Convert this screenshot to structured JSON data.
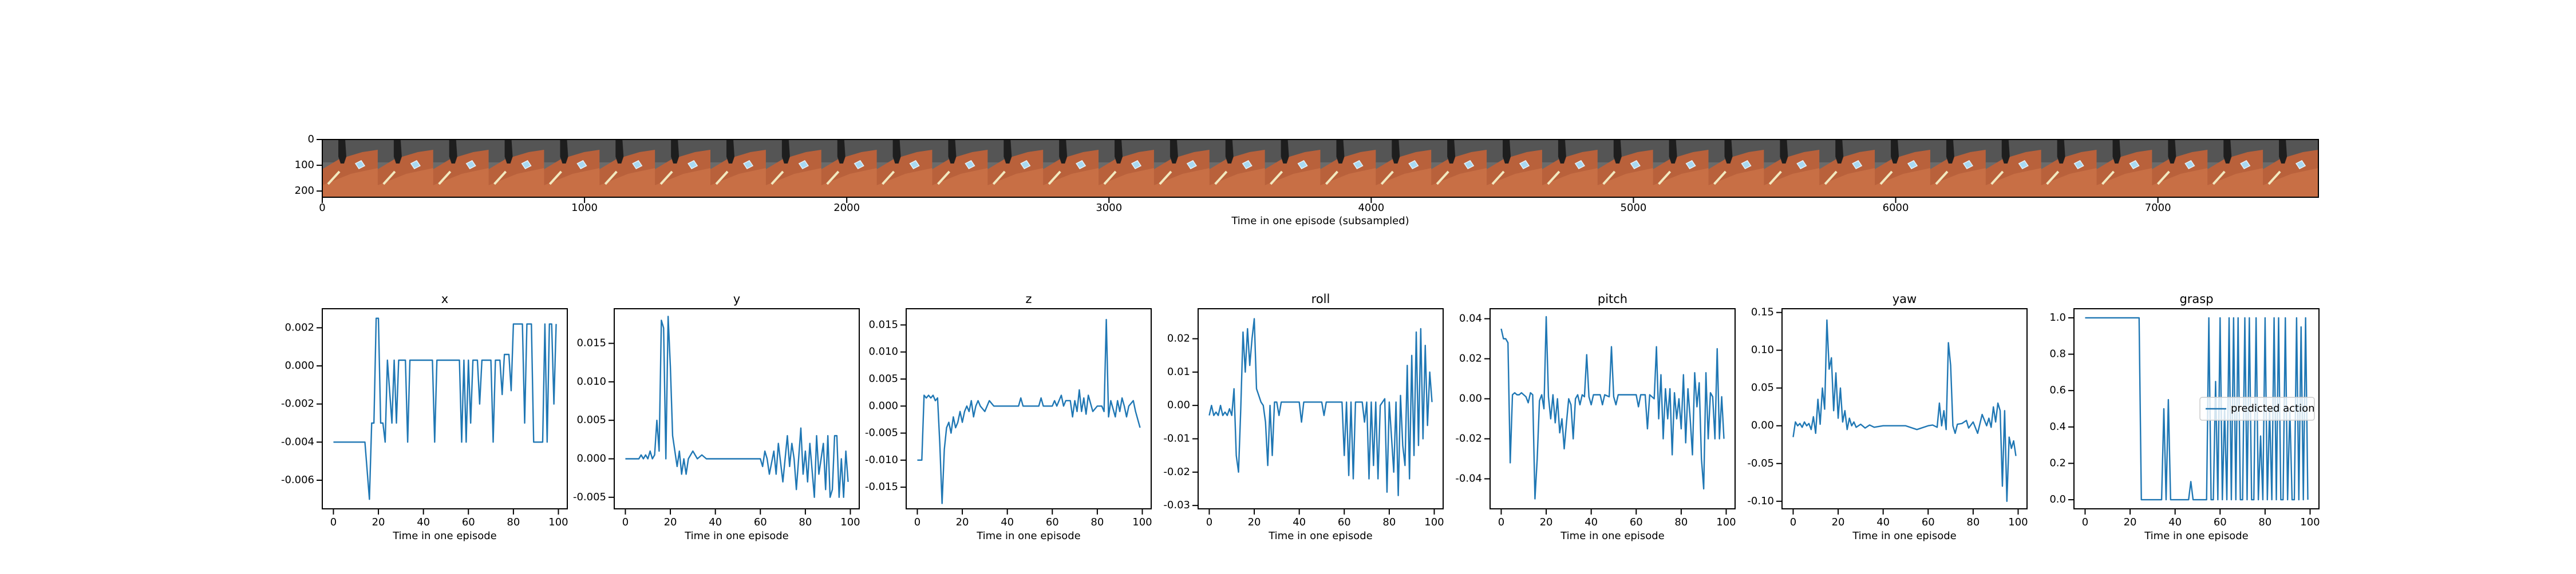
{
  "chart_data": [
    {
      "type": "image",
      "xlabel": "Time in one episode (subsampled)",
      "xlim": [
        0,
        7612
      ],
      "ylim": [
        224,
        0
      ],
      "xticks": [
        0,
        1000,
        2000,
        3000,
        4000,
        5000,
        6000,
        7000
      ],
      "yticks": [
        0,
        100,
        200
      ]
    },
    {
      "type": "line",
      "title": "x",
      "xlabel": "Time in one episode",
      "xlim": [
        -4.95,
        103.95
      ],
      "ylim": [
        -0.0075,
        0.003
      ],
      "xticks": [
        0,
        20,
        40,
        60,
        80,
        100
      ],
      "yticks": [
        -0.006,
        -0.004,
        -0.002,
        {
          "value": 0,
          "label": "0.000"
        },
        0.002
      ],
      "x": [
        0,
        14,
        16,
        17,
        18,
        19,
        20,
        21,
        22,
        23,
        24,
        26,
        27,
        28,
        29,
        32,
        33,
        34,
        44,
        45,
        46,
        56,
        57,
        58,
        59,
        60,
        61,
        62,
        64,
        65,
        66,
        70,
        71,
        72,
        74,
        75,
        76,
        78,
        79,
        80,
        84,
        85,
        86,
        88,
        89,
        93,
        94,
        95,
        96,
        97,
        98,
        99
      ],
      "series": [
        {
          "color": "#1f77b4",
          "values": [
            -0.004,
            -0.004,
            -0.007,
            -0.003,
            -0.003,
            0.0025,
            0.0025,
            -0.003,
            -0.003,
            -0.004,
            0.0003,
            -0.003,
            0.0003,
            -0.003,
            0.0003,
            0.0003,
            -0.004,
            0.0003,
            0.0003,
            -0.004,
            0.0003,
            0.0003,
            -0.004,
            0.0003,
            -0.004,
            0.0003,
            -0.003,
            0.0003,
            0.0003,
            -0.002,
            0.0003,
            0.0003,
            -0.004,
            0.0003,
            0.0003,
            -0.0015,
            0.0006,
            0.0006,
            -0.0013,
            0.0022,
            0.0022,
            -0.003,
            0.0022,
            0.0022,
            -0.004,
            -0.004,
            0.0022,
            -0.004,
            0.0022,
            0.0022,
            -0.002,
            0.0022
          ]
        }
      ]
    },
    {
      "type": "line",
      "title": "y",
      "xlabel": "Time in one episode",
      "xlim": [
        -4.95,
        103.95
      ],
      "ylim": [
        -0.0065,
        0.0195
      ],
      "xticks": [
        0,
        20,
        40,
        60,
        80,
        100
      ],
      "yticks": [
        -0.005,
        {
          "value": 0,
          "label": "0.000"
        },
        0.005,
        {
          "value": 0.01,
          "label": "0.010"
        },
        0.015
      ],
      "x": [
        0,
        6,
        7,
        8,
        9,
        10,
        11,
        12,
        13,
        14,
        15,
        16,
        17,
        18,
        19,
        20,
        21,
        22,
        23,
        24,
        25,
        26,
        27,
        28,
        30,
        32,
        34,
        36,
        60,
        61,
        62,
        63,
        64,
        66,
        67,
        68,
        70,
        72,
        73,
        74,
        75,
        76,
        78,
        79,
        80,
        81,
        82,
        84,
        85,
        86,
        88,
        89,
        90,
        91,
        92,
        93,
        94,
        95,
        96,
        97,
        98,
        99
      ],
      "series": [
        {
          "color": "#1f77b4",
          "values": [
            0,
            0,
            0.0005,
            0,
            0.0005,
            0,
            0.001,
            0,
            0.0005,
            0.005,
            0.001,
            0.018,
            0.017,
            0,
            0.0185,
            0.012,
            0.003,
            0.001,
            -0.001,
            0.001,
            -0.002,
            0,
            -0.002,
            0,
            0.001,
            0,
            0.0005,
            0,
            0,
            -0.001,
            0.001,
            0,
            -0.002,
            0.001,
            -0.002,
            0.002,
            -0.003,
            0.003,
            -0.001,
            0.002,
            0,
            -0.004,
            0.004,
            -0.002,
            0.001,
            -0.003,
            0.002,
            -0.005,
            0.003,
            -0.002,
            0.002,
            -0.004,
            0.003,
            -0.005,
            -0.004,
            0.003,
            0.003,
            -0.005,
            0,
            -0.005,
            0.001,
            -0.003
          ]
        }
      ]
    },
    {
      "type": "line",
      "title": "z",
      "xlabel": "Time in one episode",
      "xlim": [
        -4.95,
        103.95
      ],
      "ylim": [
        -0.019,
        0.018
      ],
      "xticks": [
        0,
        20,
        40,
        60,
        80,
        100
      ],
      "yticks": [
        -0.015,
        {
          "value": -0.01,
          "label": "-0.010"
        },
        -0.005,
        {
          "value": 0,
          "label": "0.000"
        },
        0.005,
        {
          "value": 0.01,
          "label": "0.010"
        },
        0.015
      ],
      "x": [
        0,
        2,
        3,
        4,
        5,
        6,
        7,
        8,
        9,
        10,
        11,
        12,
        13,
        14,
        15,
        16,
        17,
        18,
        19,
        20,
        21,
        22,
        23,
        24,
        25,
        26,
        27,
        28,
        30,
        32,
        34,
        45,
        46,
        47,
        54,
        55,
        56,
        60,
        61,
        62,
        64,
        65,
        66,
        68,
        69,
        70,
        71,
        72,
        73,
        74,
        75,
        76,
        78,
        80,
        82,
        83,
        84,
        85,
        86,
        88,
        89,
        90,
        91,
        92,
        93,
        94,
        96,
        97,
        99
      ],
      "series": [
        {
          "color": "#1f77b4",
          "values": [
            -0.01,
            -0.01,
            0.002,
            0.0015,
            0.002,
            0.0015,
            0.002,
            0.001,
            0.0015,
            -0.007,
            -0.018,
            -0.008,
            -0.004,
            -0.003,
            -0.005,
            -0.002,
            -0.004,
            -0.003,
            -0.001,
            -0.003,
            -0.001,
            0,
            -0.001,
            0.001,
            -0.002,
            0,
            0.001,
            0,
            -0.001,
            0.001,
            0,
            0,
            0.0015,
            0,
            0,
            0.0015,
            0,
            0,
            0.001,
            0,
            0.002,
            0,
            0.001,
            0.001,
            -0.002,
            0.001,
            -0.001,
            0.003,
            -0.001,
            0.0015,
            -0.0015,
            0.002,
            -0.001,
            0,
            0,
            -0.001,
            0.016,
            -0.002,
            0.001,
            -0.002,
            0.001,
            -0.001,
            0.0015,
            0,
            -0.002,
            0,
            0.001,
            -0.001,
            -0.004
          ]
        }
      ]
    },
    {
      "type": "line",
      "title": "roll",
      "xlabel": "Time in one episode",
      "xlim": [
        -4.95,
        103.95
      ],
      "ylim": [
        -0.031,
        0.029
      ],
      "xticks": [
        0,
        20,
        40,
        60,
        80,
        100
      ],
      "yticks": [
        -0.03,
        -0.02,
        -0.01,
        {
          "value": 0,
          "label": "0.00"
        },
        0.01,
        0.02
      ],
      "x": [
        0,
        1,
        2,
        3,
        4,
        5,
        6,
        7,
        8,
        9,
        10,
        11,
        12,
        13,
        14,
        15,
        16,
        17,
        18,
        19,
        20,
        21,
        22,
        23,
        24,
        25,
        26,
        27,
        28,
        29,
        30,
        31,
        32,
        40,
        41,
        42,
        50,
        51,
        52,
        58,
        59,
        60,
        61,
        62,
        63,
        64,
        65,
        68,
        69,
        70,
        71,
        72,
        73,
        74,
        75,
        76,
        78,
        79,
        80,
        82,
        83,
        84,
        85,
        86,
        87,
        88,
        89,
        90,
        91,
        92,
        93,
        94,
        95,
        96,
        97,
        98,
        99
      ],
      "series": [
        {
          "color": "#1f77b4",
          "values": [
            -0.003,
            0,
            -0.003,
            -0.002,
            -0.003,
            0,
            -0.003,
            -0.002,
            -0.003,
            -0.001,
            -0.003,
            0.005,
            -0.015,
            -0.02,
            -0.001,
            0.022,
            0.01,
            0.023,
            0.012,
            0.02,
            0.026,
            0.005,
            0.003,
            0.001,
            0,
            -0.005,
            -0.018,
            0,
            -0.015,
            0.001,
            0.001,
            -0.003,
            0.001,
            0.001,
            -0.005,
            0.001,
            0.001,
            -0.003,
            0.001,
            0.001,
            0.001,
            -0.015,
            0.001,
            -0.021,
            0.001,
            -0.022,
            0.001,
            0.001,
            -0.005,
            0.001,
            -0.022,
            0.001,
            -0.018,
            0.001,
            -0.022,
            0,
            0.002,
            -0.026,
            0.001,
            -0.02,
            0.001,
            -0.027,
            0.003,
            -0.012,
            -0.018,
            0.012,
            -0.022,
            0.015,
            -0.015,
            0.022,
            -0.012,
            0.023,
            -0.01,
            0.018,
            -0.006,
            0.01,
            0.001
          ]
        }
      ]
    },
    {
      "type": "line",
      "title": "pitch",
      "xlabel": "Time in one episode",
      "xlim": [
        -4.95,
        103.95
      ],
      "ylim": [
        -0.055,
        0.045
      ],
      "xticks": [
        0,
        20,
        40,
        60,
        80,
        100
      ],
      "yticks": [
        -0.04,
        -0.02,
        {
          "value": 0,
          "label": "0.00"
        },
        0.02,
        0.04
      ],
      "x": [
        0,
        1,
        2,
        3,
        4,
        5,
        6,
        7,
        8,
        9,
        10,
        11,
        12,
        13,
        14,
        15,
        16,
        17,
        18,
        19,
        20,
        21,
        22,
        23,
        24,
        25,
        26,
        27,
        28,
        29,
        30,
        31,
        32,
        33,
        34,
        35,
        36,
        37,
        38,
        39,
        40,
        41,
        44,
        45,
        46,
        48,
        49,
        50,
        51,
        52,
        60,
        61,
        62,
        64,
        65,
        66,
        67,
        68,
        69,
        70,
        71,
        72,
        73,
        74,
        75,
        76,
        77,
        78,
        79,
        80,
        81,
        82,
        83,
        84,
        85,
        86,
        87,
        88,
        89,
        90,
        91,
        92,
        93,
        94,
        95,
        96,
        97,
        98,
        99
      ],
      "series": [
        {
          "color": "#1f77b4",
          "values": [
            0.035,
            0.03,
            0.03,
            0.028,
            -0.032,
            0.002,
            0.003,
            0.002,
            0.002,
            0.003,
            0.002,
            0.001,
            -0.002,
            0.003,
            0.002,
            -0.05,
            -0.03,
            -0.001,
            0.002,
            -0.005,
            0.041,
            0.001,
            -0.01,
            0.002,
            -0.012,
            0,
            -0.017,
            -0.01,
            -0.025,
            -0.012,
            0,
            -0.003,
            -0.02,
            0,
            0.002,
            -0.003,
            0.002,
            0.001,
            0.022,
            0.001,
            -0.003,
            0.002,
            0.002,
            -0.003,
            0.002,
            0.001,
            0.026,
            0.001,
            -0.003,
            0.002,
            0.002,
            -0.004,
            0.002,
            0.002,
            -0.015,
            0.002,
            0.001,
            0,
            0.026,
            -0.01,
            0.012,
            -0.02,
            0.005,
            -0.01,
            0.005,
            -0.028,
            0.003,
            -0.01,
            0,
            -0.015,
            0.012,
            -0.022,
            0.005,
            -0.01,
            -0.028,
            0.013,
            -0.004,
            0.008,
            -0.03,
            -0.045,
            0.013,
            -0.02,
            0.003,
            0.001,
            -0.02,
            0.025,
            -0.02,
            0.001,
            -0.02
          ]
        }
      ]
    },
    {
      "type": "line",
      "title": "yaw",
      "xlabel": "Time in one episode",
      "xlim": [
        -4.95,
        103.95
      ],
      "ylim": [
        -0.11,
        0.155
      ],
      "xticks": [
        0,
        20,
        40,
        60,
        80,
        100
      ],
      "yticks": [
        {
          "value": -0.1,
          "label": "-0.10"
        },
        -0.05,
        {
          "value": 0,
          "label": "0.00"
        },
        0.05,
        {
          "value": 0.1,
          "label": "0.10"
        },
        0.15
      ],
      "x": [
        0,
        1,
        2,
        3,
        4,
        5,
        6,
        7,
        8,
        9,
        10,
        11,
        12,
        13,
        14,
        15,
        16,
        17,
        18,
        19,
        20,
        21,
        22,
        23,
        24,
        25,
        26,
        27,
        28,
        30,
        32,
        34,
        36,
        40,
        50,
        55,
        60,
        62,
        64,
        65,
        66,
        67,
        68,
        69,
        70,
        71,
        72,
        73,
        75,
        77,
        78,
        80,
        82,
        84,
        86,
        87,
        88,
        89,
        90,
        91,
        92,
        93,
        94,
        95,
        96,
        97,
        98,
        99
      ],
      "series": [
        {
          "color": "#1f77b4",
          "values": [
            -0.015,
            0.005,
            0,
            0.003,
            -0.002,
            0.005,
            0,
            0.003,
            -0.005,
            0.012,
            -0.01,
            0.035,
            0.002,
            0.05,
            0.022,
            0.14,
            0.075,
            0.09,
            0.02,
            0.07,
            0.01,
            0.05,
            0.005,
            0.02,
            -0.005,
            0.01,
            0,
            0.005,
            -0.002,
            0.002,
            -0.003,
            0.001,
            -0.002,
            0,
            0,
            -0.005,
            0,
            0.001,
            -0.002,
            0.03,
            0,
            0.02,
            -0.005,
            0.11,
            0.08,
            0,
            -0.01,
            0.002,
            0.003,
            0.007,
            -0.003,
            0.005,
            -0.01,
            0.015,
            0,
            0.01,
            -0.002,
            0.025,
            0.005,
            0.03,
            0.02,
            -0.08,
            0.02,
            -0.1,
            -0.015,
            -0.03,
            -0.02,
            -0.04
          ]
        }
      ]
    },
    {
      "type": "line",
      "title": "grasp",
      "xlabel": "Time in one episode",
      "xlim": [
        -4.95,
        103.95
      ],
      "ylim": [
        -0.05,
        1.05
      ],
      "xticks": [
        0,
        20,
        40,
        60,
        80,
        100
      ],
      "yticks": [
        {
          "value": 0,
          "label": "0.0"
        },
        0.2,
        0.4,
        0.6,
        0.8,
        {
          "value": 1,
          "label": "1.0"
        }
      ],
      "legend": "center right",
      "x": [
        0,
        24,
        25,
        26,
        34,
        35,
        36,
        37,
        38,
        46,
        47,
        48,
        54,
        55,
        56,
        57,
        58,
        59,
        60,
        61,
        62,
        63,
        64,
        65,
        66,
        67,
        68,
        69,
        70,
        71,
        72,
        73,
        74,
        75,
        76,
        77,
        78,
        79,
        80,
        81,
        82,
        83,
        84,
        85,
        86,
        87,
        88,
        89,
        90,
        91,
        92,
        93,
        94,
        95,
        96,
        97,
        98,
        99
      ],
      "series": [
        {
          "name": "predicted action",
          "color": "#1f77b4",
          "values": [
            1,
            1,
            0,
            0,
            0,
            0.5,
            0,
            0.55,
            0,
            0,
            0.1,
            0,
            0,
            1,
            0,
            0,
            0.65,
            0,
            1,
            0,
            0.5,
            0,
            1,
            0,
            1,
            0,
            1,
            0,
            0,
            1,
            0,
            1,
            0,
            0,
            1,
            0,
            0.35,
            0,
            1,
            0,
            0.5,
            0,
            1,
            0,
            1,
            0,
            0,
            1,
            0,
            0.5,
            0,
            0,
            1,
            0,
            0.95,
            0,
            1,
            0
          ]
        }
      ]
    }
  ]
}
